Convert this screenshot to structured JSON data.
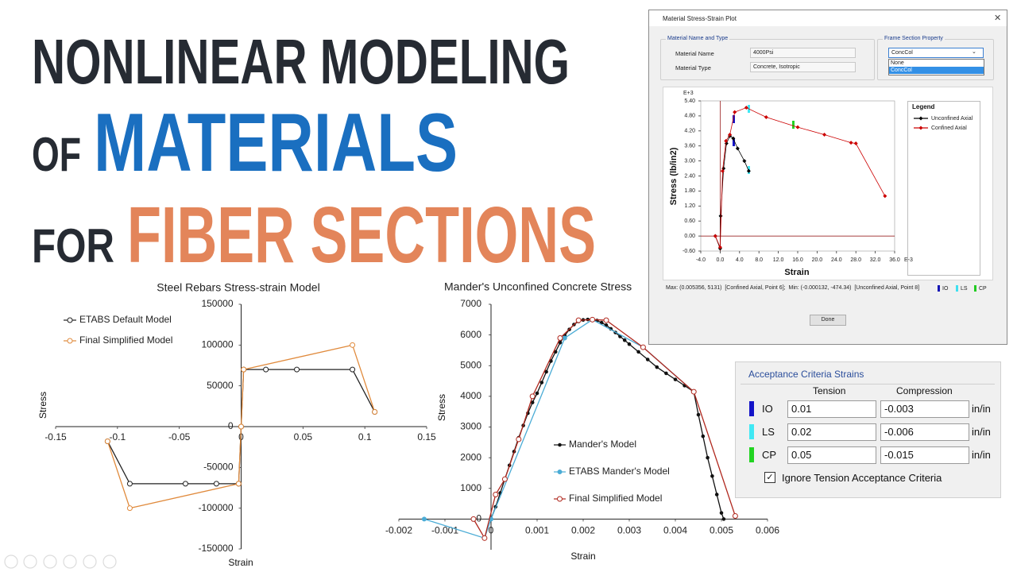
{
  "headline": {
    "line1": "NONLINEAR MODELING",
    "of": "OF",
    "materials": "MATERIALS",
    "for": "FOR",
    "fiber_sections": "FIBER SECTIONS"
  },
  "chart_data": [
    {
      "type": "line",
      "title": "Steel Rebars Stress-strain Model",
      "x_label": "Strain",
      "y_label": "Stress",
      "xlim": [
        -0.15,
        0.15
      ],
      "ylim": [
        -150000,
        150000
      ],
      "xticks": [
        -0.15,
        -0.1,
        -0.05,
        0,
        0.05,
        0.1,
        0.15
      ],
      "yticks": [
        -150000,
        -100000,
        -50000,
        0,
        50000,
        100000,
        150000
      ],
      "series": [
        {
          "name": "ETABS Default Model",
          "color": "#222222",
          "marker": "open-circle",
          "x": [
            -0.108,
            -0.09,
            -0.045,
            -0.02,
            -0.002,
            0,
            0.002,
            0.02,
            0.045,
            0.09,
            0.108
          ],
          "values": [
            -18000,
            -70000,
            -70000,
            -70000,
            -70000,
            0,
            70000,
            70000,
            70000,
            70000,
            18000
          ]
        },
        {
          "name": "Final Simplified Model",
          "color": "#e08a3c",
          "marker": "open-circle",
          "x": [
            -0.108,
            -0.09,
            -0.002,
            0,
            0.002,
            0.09,
            0.108
          ],
          "values": [
            -18000,
            -100000,
            -70000,
            0,
            70000,
            100000,
            18000
          ]
        }
      ]
    },
    {
      "type": "line",
      "title": "Mander's Unconfined Concrete Stress",
      "x_label": "Strain",
      "y_label": "Stress",
      "xlim": [
        -0.002,
        0.006
      ],
      "ylim": [
        -1000,
        7000
      ],
      "xticks": [
        -0.002,
        -0.001,
        0,
        0.001,
        0.002,
        0.003,
        0.004,
        0.005,
        0.006
      ],
      "yticks": [
        0,
        1000,
        2000,
        3000,
        4000,
        5000,
        6000,
        7000
      ],
      "series": [
        {
          "name": "Mander's Model",
          "color": "#111111",
          "marker": "dot",
          "x": [
            0,
            0.0001,
            0.0002,
            0.0003,
            0.0004,
            0.0005,
            0.0006,
            0.0007,
            0.0008,
            0.0009,
            0.001,
            0.0011,
            0.0012,
            0.0013,
            0.0014,
            0.0015,
            0.0016,
            0.0017,
            0.0018,
            0.0019,
            0.002,
            0.0021,
            0.0022,
            0.0023,
            0.0024,
            0.0025,
            0.0026,
            0.0027,
            0.0028,
            0.0029,
            0.003,
            0.0032,
            0.0034,
            0.0036,
            0.0038,
            0.004,
            0.0042,
            0.0044,
            0.0045,
            0.0046,
            0.0047,
            0.0048,
            0.0049,
            0.005,
            0.00505
          ],
          "values": [
            0,
            400,
            850,
            1300,
            1750,
            2200,
            2650,
            3050,
            3450,
            3800,
            4100,
            4450,
            4800,
            5150,
            5450,
            5750,
            5980,
            6180,
            6340,
            6440,
            6490,
            6505,
            6500,
            6470,
            6400,
            6320,
            6200,
            6080,
            5950,
            5830,
            5700,
            5450,
            5200,
            4950,
            4750,
            4550,
            4350,
            4150,
            3400,
            2700,
            2000,
            1400,
            800,
            200,
            0
          ]
        },
        {
          "name": "ETABS Mander's Model",
          "color": "#4bacd6",
          "marker": "circle",
          "x": [
            -0.00145,
            -0.00014,
            0,
            0.0016,
            0.0022,
            0.0033,
            0.0044
          ],
          "values": [
            0,
            -620,
            0,
            5900,
            6500,
            5600,
            4150
          ]
        },
        {
          "name": "Final Simplified Model",
          "color": "#b0281e",
          "marker": "open-circle",
          "x": [
            -0.00038,
            -0.00014,
            0.0001,
            0.0003,
            0.0006,
            0.0009,
            0.0015,
            0.0019,
            0.0022,
            0.0025,
            0.0033,
            0.0044,
            0.0053
          ],
          "values": [
            0,
            -620,
            800,
            1300,
            2600,
            4000,
            5900,
            6480,
            6500,
            6480,
            5600,
            4150,
            100
          ]
        }
      ]
    },
    {
      "type": "line",
      "x_label": "Strain",
      "y_label": "Stress (lb/in2)",
      "x_exponent": "E-3",
      "y_exponent": "E+3",
      "legend_title": "Legend",
      "xlim": [
        -4,
        36
      ],
      "ylim": [
        -0.6,
        5.4
      ],
      "xticks": [
        {
          "value": -4,
          "label": "-4.0"
        },
        {
          "value": 0,
          "label": "0.0"
        },
        {
          "value": 4,
          "label": "4.0"
        },
        {
          "value": 8,
          "label": "8.0"
        },
        {
          "value": 12,
          "label": "12.0"
        },
        {
          "value": 16,
          "label": "16.0"
        },
        {
          "value": 20,
          "label": "20.0"
        },
        {
          "value": 24,
          "label": "24.0"
        },
        {
          "value": 28,
          "label": "28.0"
        },
        {
          "value": 32,
          "label": "32.0"
        },
        {
          "value": 36,
          "label": "36.0"
        }
      ],
      "yticks": [
        {
          "value": -0.6,
          "label": "-0.60"
        },
        {
          "value": 0,
          "label": "0.00"
        },
        {
          "value": 0.6,
          "label": "0.60"
        },
        {
          "value": 1.2,
          "label": "1.20"
        },
        {
          "value": 1.8,
          "label": "1.80"
        },
        {
          "value": 2.4,
          "label": "2.40"
        },
        {
          "value": 3,
          "label": "3.00"
        },
        {
          "value": 3.6,
          "label": "3.60"
        },
        {
          "value": 4.2,
          "label": "4.20"
        },
        {
          "value": 4.8,
          "label": "4.80"
        },
        {
          "value": 5.4,
          "label": "5.40"
        }
      ],
      "series": [
        {
          "name": "Unconfined Axial",
          "color": "#000000",
          "marker": "diamond",
          "x": [
            -1,
            0,
            0.1,
            0.7,
            1.3,
            2.0,
            2.7,
            3.6,
            5.0,
            5.9
          ],
          "values": [
            0,
            -0.5,
            0.8,
            2.7,
            3.7,
            4.0,
            3.9,
            3.5,
            3.0,
            2.6
          ]
        },
        {
          "name": "Confined Axial",
          "color": "#cc0000",
          "marker": "diamond",
          "x": [
            -1,
            0,
            0.5,
            1.2,
            2.0,
            3.0,
            5.4,
            9.5,
            16,
            21.5,
            27,
            28,
            34
          ],
          "values": [
            0,
            -0.45,
            2.6,
            3.8,
            4.05,
            4.95,
            5.13,
            4.75,
            4.35,
            4.05,
            3.73,
            3.7,
            1.6
          ]
        }
      ]
    }
  ],
  "dialog": {
    "title": "Material Stress-Strain Plot",
    "material_group": "Material Name and Type",
    "material_name_label": "Material Name",
    "material_name": "4000Psi",
    "material_type_label": "Material Type",
    "material_type": "Concrete, Isotropic",
    "section_group": "Frame Section Property",
    "section": "ConcCol",
    "section_options": [
      "None",
      "ConcCol"
    ],
    "status": "Max: (0.005356, 5131)  [Confined Axial, Point 6];  Min: (-0.000132, -474.34)  [Unconfined Axial, Point 8]",
    "limit_labels": [
      "IO",
      "LS",
      "CP"
    ],
    "button": "Done"
  },
  "acceptance": {
    "title": "Acceptance Criteria Strains",
    "headers": [
      "Tension",
      "Compression"
    ],
    "rows": [
      {
        "level": "IO",
        "tension": 0.01,
        "compression": -0.003,
        "unit": "in/in"
      },
      {
        "level": "LS",
        "tension": 0.02,
        "compression": -0.006,
        "unit": "in/in"
      },
      {
        "level": "CP",
        "tension": 0.05,
        "compression": -0.015,
        "unit": "in/in"
      }
    ],
    "checkbox": "Ignore Tension Acceptance Criteria"
  }
}
